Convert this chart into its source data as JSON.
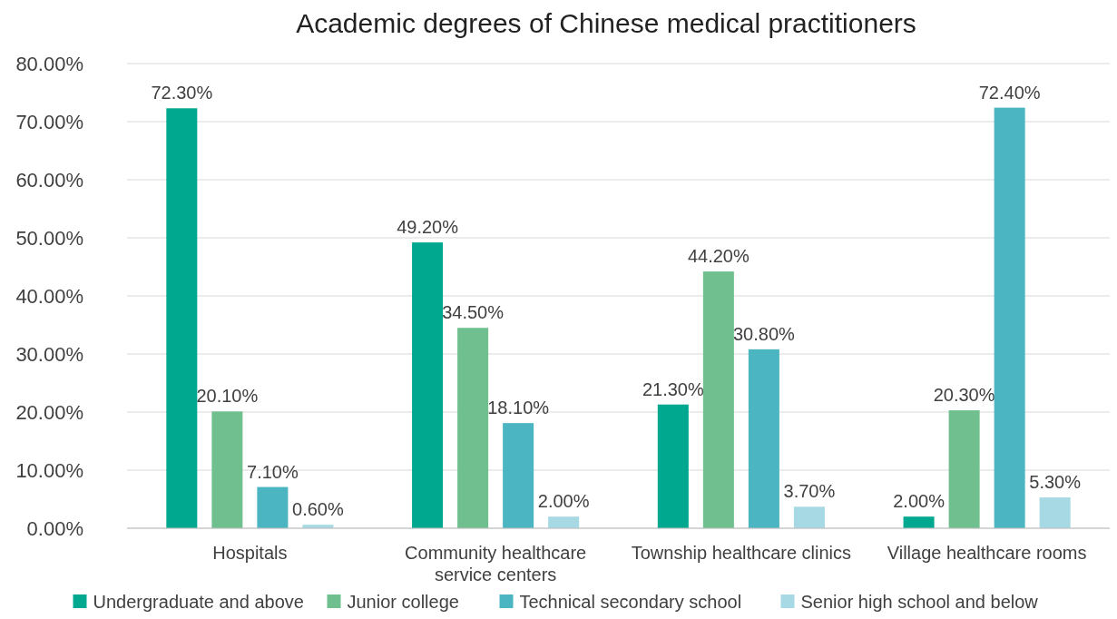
{
  "chart_data": {
    "type": "bar",
    "title": "Academic degrees of Chinese medical practitioners",
    "categories": [
      "Hospitals",
      "Community healthcare service centers",
      "Township healthcare clinics",
      "Village healthcare rooms"
    ],
    "series": [
      {
        "name": "Undergraduate and above",
        "color": "#00a88f",
        "values": [
          72.3,
          49.2,
          21.3,
          2.0
        ],
        "value_labels": [
          "72.30%",
          "49.20%",
          "21.30%",
          "2.00%"
        ]
      },
      {
        "name": "Junior college",
        "color": "#70c08f",
        "values": [
          20.1,
          34.5,
          44.2,
          20.3
        ],
        "value_labels": [
          "20.10%",
          "34.50%",
          "44.20%",
          "20.30%"
        ]
      },
      {
        "name": "Technical secondary school",
        "color": "#4bb5c1",
        "values": [
          7.1,
          18.1,
          30.8,
          72.4
        ],
        "value_labels": [
          "7.10%",
          "18.10%",
          "30.80%",
          "72.40%"
        ]
      },
      {
        "name": "Senior high school and below",
        "color": "#a6d9e3",
        "values": [
          0.6,
          2.0,
          3.7,
          5.3
        ],
        "value_labels": [
          "0.60%",
          "2.00%",
          "3.70%",
          "5.30%"
        ]
      }
    ],
    "ylim": [
      0,
      80
    ],
    "yticks": [
      {
        "value": 0,
        "label": "0.00%"
      },
      {
        "value": 10,
        "label": "10.00%"
      },
      {
        "value": 20,
        "label": "20.00%"
      },
      {
        "value": 30,
        "label": "30.00%"
      },
      {
        "value": 40,
        "label": "40.00%"
      },
      {
        "value": 50,
        "label": "50.00%"
      },
      {
        "value": 60,
        "label": "60.00%"
      },
      {
        "value": 70,
        "label": "70.00%"
      },
      {
        "value": 80,
        "label": "80.00%"
      }
    ],
    "grid": "y",
    "legend": "bottom"
  }
}
